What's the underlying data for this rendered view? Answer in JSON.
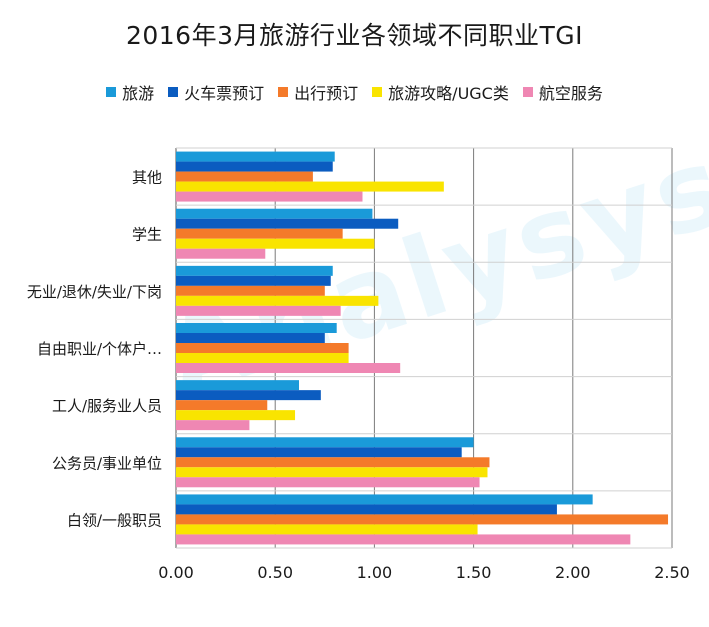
{
  "chart_data": {
    "type": "bar",
    "orientation": "horizontal",
    "title": "2016年3月旅游行业各领域不同职业TGI",
    "categories": [
      "其他",
      "学生",
      "无业/退休/失业/下岗",
      "自由职业/个体户…",
      "工人/服务业人员",
      "公务员/事业单位",
      "白领/一般职员"
    ],
    "series": [
      {
        "name": "旅游",
        "color": "#1a9ad9",
        "values": [
          0.8,
          0.99,
          0.79,
          0.81,
          0.62,
          1.5,
          2.1
        ]
      },
      {
        "name": "火车票预订",
        "color": "#0b5cc0",
        "values": [
          0.79,
          1.12,
          0.78,
          0.75,
          0.73,
          1.44,
          1.92
        ]
      },
      {
        "name": "出行预订",
        "color": "#f47a2a",
        "values": [
          0.69,
          0.84,
          0.75,
          0.87,
          0.46,
          1.58,
          2.48
        ]
      },
      {
        "name": "旅游攻略/UGC类",
        "color": "#f9e400",
        "values": [
          1.35,
          1.0,
          1.02,
          0.87,
          0.6,
          1.57,
          1.52
        ]
      },
      {
        "name": "航空服务",
        "color": "#ef87b3",
        "values": [
          0.94,
          0.45,
          0.83,
          1.13,
          0.37,
          1.53,
          2.29
        ]
      }
    ],
    "xlim": [
      0,
      2.5
    ],
    "xticks": [
      "0.00",
      "0.50",
      "1.00",
      "1.50",
      "2.00",
      "2.50"
    ],
    "grid": true,
    "legend_position": "top"
  },
  "watermark": "Analysys"
}
